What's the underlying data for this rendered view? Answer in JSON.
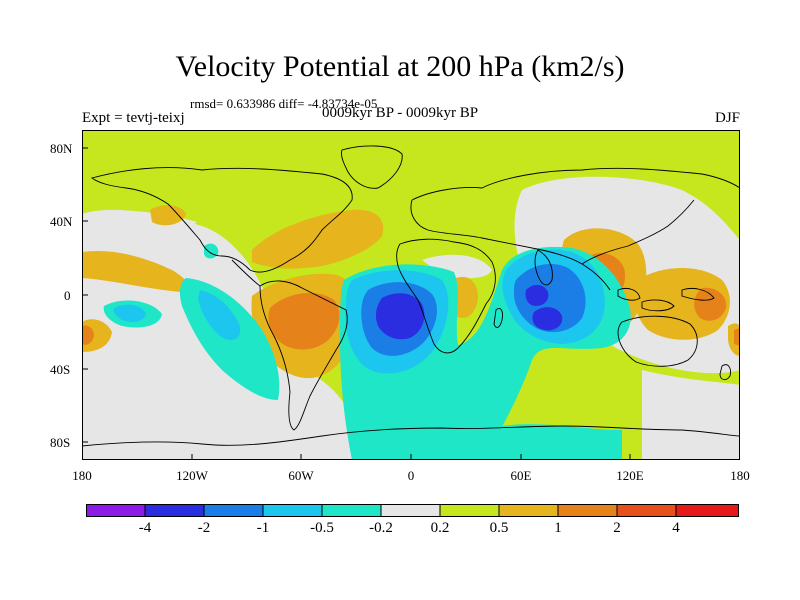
{
  "header": {
    "title": "Velocity Potential at 200 hPa (km2/s)",
    "stats": "rmsd= 0.633986 diff= -4.83734e-05",
    "experiment": "Expt = tevtj-teixj",
    "period": "0009kyr BP - 0009kyr BP",
    "season": "DJF"
  },
  "axes": {
    "lat_labels": [
      "80N",
      "40N",
      "0",
      "40S",
      "80S"
    ],
    "lon_labels": [
      "180",
      "120W",
      "60W",
      "0",
      "60E",
      "120E",
      "180"
    ]
  },
  "colorbar": {
    "labels": [
      "-4",
      "-2",
      "-1",
      "-0.5",
      "-0.2",
      "0.2",
      "0.5",
      "1",
      "2",
      "4"
    ],
    "colors": [
      "#8b1de6",
      "#2a2ee0",
      "#1a7ee6",
      "#1dc6ee",
      "#20e6c8",
      "#e6e6e6",
      "#c6e61d",
      "#e6b41d",
      "#e6821a",
      "#e6501a",
      "#e61a1a"
    ]
  },
  "field_colors": {
    "positive_small": "#c6e61d",
    "neutral": "#e6e6e6",
    "positive_mid": "#e6b41d",
    "positive_high": "#e6821a",
    "negative_small": "#20e6c8",
    "negative_mid": "#1dc6ee",
    "negative_large": "#1a7ee6",
    "negative_max": "#2a2ee0",
    "coast": "#000000"
  }
}
